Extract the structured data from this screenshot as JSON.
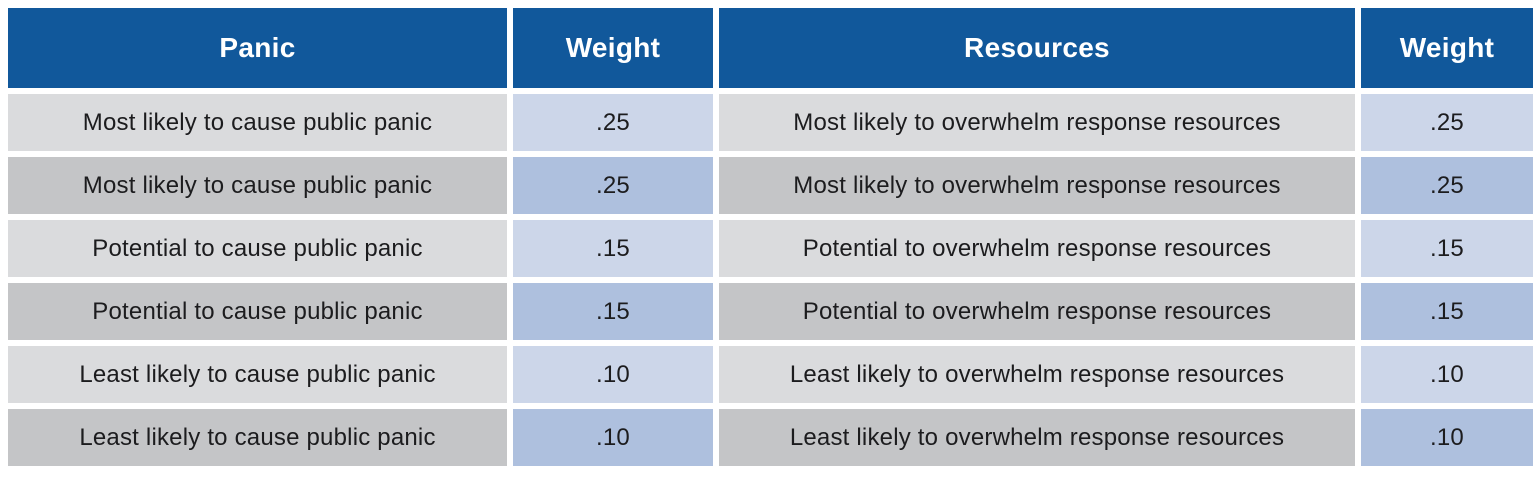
{
  "colors": {
    "header_bg": "#11589b",
    "header_text": "#ffffff",
    "row_odd_bg": "#dadbdd",
    "row_even_bg": "#c4c5c7",
    "weight_odd_bg": "#ccd6e9",
    "weight_even_bg": "#aec0de",
    "body_text": "#1c1c1e"
  },
  "table": {
    "headers": {
      "panic": "Panic",
      "panic_weight": "Weight",
      "resources": "Resources",
      "resources_weight": "Weight"
    },
    "rows": [
      {
        "panic": "Most likely to cause public panic",
        "panic_weight": ".25",
        "resources": "Most likely to overwhelm response resources",
        "resources_weight": ".25"
      },
      {
        "panic": "Most likely to cause public panic",
        "panic_weight": ".25",
        "resources": "Most likely to overwhelm response resources",
        "resources_weight": ".25"
      },
      {
        "panic": "Potential to cause public panic",
        "panic_weight": ".15",
        "resources": "Potential to overwhelm response resources",
        "resources_weight": ".15"
      },
      {
        "panic": "Potential to cause public panic",
        "panic_weight": ".15",
        "resources": "Potential to overwhelm response resources",
        "resources_weight": ".15"
      },
      {
        "panic": "Least likely to cause public panic",
        "panic_weight": ".10",
        "resources": "Least likely to overwhelm response resources",
        "resources_weight": ".10"
      },
      {
        "panic": "Least likely to cause public panic",
        "panic_weight": ".10",
        "resources": "Least likely to overwhelm response resources",
        "resources_weight": ".10"
      }
    ]
  }
}
